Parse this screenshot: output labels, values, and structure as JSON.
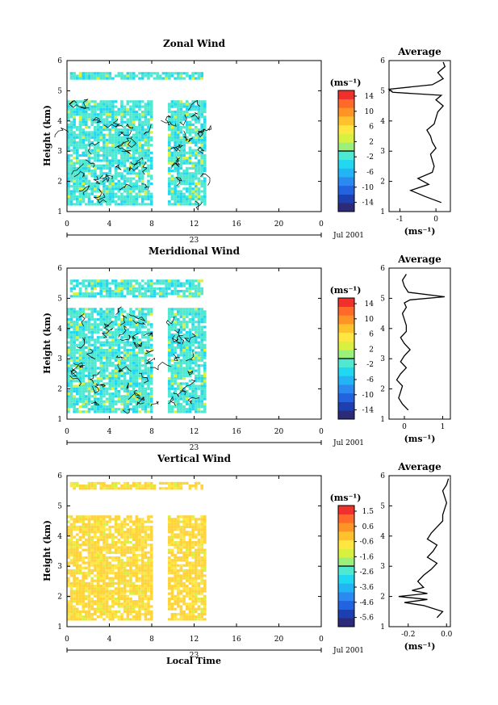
{
  "panels": [
    {
      "id": "zonal",
      "title": "Zonal Wind",
      "ylabel": "Height (km)",
      "xticks": [
        "0",
        "4",
        "8",
        "12",
        "16",
        "20",
        "0"
      ],
      "yticks": [
        "1",
        "2",
        "3",
        "4",
        "5",
        "6"
      ],
      "date_day": "23",
      "date_label": "Jul 2001",
      "unit_label": "(ms⁻¹)",
      "colorbar_ticks": [
        "14",
        "10",
        "6",
        "2",
        "-2",
        "-6",
        "-10",
        "-14"
      ],
      "colorbar_range": [
        -16,
        16
      ],
      "dominant_color": "#4fe8d0",
      "secondary_color": "#22d8f0",
      "avg_title": "Average",
      "avg_xticks": [
        "-1",
        "0"
      ],
      "avg_unit": "(ms⁻¹)"
    },
    {
      "id": "meridional",
      "title": "Meridional Wind",
      "ylabel": "Height (km)",
      "xticks": [
        "0",
        "4",
        "8",
        "12",
        "16",
        "20",
        "0"
      ],
      "yticks": [
        "1",
        "2",
        "3",
        "4",
        "5",
        "6"
      ],
      "date_day": "23",
      "date_label": "Jul 2001",
      "unit_label": "(ms⁻¹)",
      "colorbar_ticks": [
        "14",
        "10",
        "6",
        "2",
        "-2",
        "-6",
        "-10",
        "-14"
      ],
      "colorbar_range": [
        -16,
        16
      ],
      "dominant_color": "#4fe8d0",
      "secondary_color": "#22d8f0",
      "avg_title": "Average",
      "avg_xticks": [
        "0",
        "1"
      ],
      "avg_unit": "(ms⁻¹)"
    },
    {
      "id": "vertical",
      "title": "Vertical Wind",
      "ylabel": "Height (km)",
      "xticks": [
        "0",
        "4",
        "8",
        "12",
        "16",
        "20",
        "0"
      ],
      "yticks": [
        "1",
        "2",
        "3",
        "4",
        "5",
        "6"
      ],
      "date_day": "23",
      "date_label": "Jul 2001",
      "unit_label": "(ms⁻¹)",
      "colorbar_ticks": [
        "1.5",
        "0.6",
        "-0.6",
        "-1.6",
        "-2.6",
        "-3.6",
        "-4.6",
        "-5.6"
      ],
      "colorbar_range": [
        -6.1,
        2.0
      ],
      "dominant_color": "#ffd33a",
      "secondary_color": "#ffe640",
      "avg_title": "Average",
      "avg_xticks": [
        "-0.2",
        "0.0"
      ],
      "avg_unit": "(ms⁻¹)"
    }
  ],
  "xlabel": "Local Time",
  "colormap": [
    "#2b2b7a",
    "#1d3fb0",
    "#2463e0",
    "#2a8af0",
    "#22b4f5",
    "#22d8f0",
    "#4fe8d0",
    "#9af07a",
    "#d8f040",
    "#ffe640",
    "#ffc22c",
    "#ff9426",
    "#ff6a2a",
    "#f0302a"
  ],
  "chart_data": [
    {
      "type": "heatmap",
      "title": "Zonal Wind",
      "xlabel": "Local Time",
      "ylabel": "Height (km)",
      "xlim": [
        0,
        24
      ],
      "ylim": [
        1,
        6
      ],
      "colorbar_ticks": [
        14,
        10,
        6,
        2,
        -2,
        -6,
        -10,
        -14
      ],
      "data_coverage": [
        {
          "x": [
            0,
            8
          ],
          "y": [
            1.2,
            4.7
          ]
        },
        {
          "x": [
            9.5,
            13.2
          ],
          "y": [
            1.2,
            4.7
          ]
        },
        {
          "x": [
            0.2,
            13
          ],
          "y": [
            5.4,
            5.6
          ]
        }
      ],
      "typical_value_range": [
        -4,
        2
      ],
      "average_profile": {
        "xlim": [
          -1.3,
          0.4
        ],
        "xticks": [
          -1,
          0
        ],
        "height": [
          1.3,
          1.5,
          1.7,
          1.9,
          2.1,
          2.3,
          2.5,
          2.7,
          2.9,
          3.1,
          3.3,
          3.5,
          3.7,
          3.9,
          4.1,
          4.3,
          4.5,
          4.7,
          4.85,
          4.95,
          5.05,
          5.2,
          5.4,
          5.6,
          5.8,
          5.95
        ],
        "value": [
          0.15,
          -0.3,
          -0.7,
          -0.2,
          -0.5,
          -0.1,
          -0.05,
          -0.1,
          -0.15,
          0.0,
          -0.1,
          -0.15,
          -0.25,
          -0.05,
          0.0,
          0.05,
          0.2,
          0.0,
          0.15,
          -1.2,
          -1.3,
          -0.1,
          0.2,
          0.05,
          0.25,
          0.2
        ]
      }
    },
    {
      "type": "heatmap",
      "title": "Meridional Wind",
      "xlabel": "Local Time",
      "ylabel": "Height (km)",
      "xlim": [
        0,
        24
      ],
      "ylim": [
        1,
        6
      ],
      "colorbar_ticks": [
        14,
        10,
        6,
        2,
        -2,
        -6,
        -10,
        -14
      ],
      "data_coverage": [
        {
          "x": [
            0,
            8
          ],
          "y": [
            1.2,
            4.7
          ]
        },
        {
          "x": [
            9.5,
            13.2
          ],
          "y": [
            1.2,
            4.7
          ]
        },
        {
          "x": [
            0.2,
            13
          ],
          "y": [
            5.0,
            5.6
          ]
        }
      ],
      "typical_value_range": [
        -4,
        2
      ],
      "average_profile": {
        "xlim": [
          -0.4,
          1.2
        ],
        "xticks": [
          0,
          1
        ],
        "height": [
          1.3,
          1.5,
          1.7,
          1.9,
          2.1,
          2.3,
          2.5,
          2.7,
          2.9,
          3.1,
          3.3,
          3.5,
          3.7,
          3.9,
          4.1,
          4.3,
          4.5,
          4.7,
          4.85,
          4.95,
          5.05,
          5.2,
          5.4,
          5.6,
          5.8
        ],
        "value": [
          0.1,
          -0.05,
          -0.15,
          -0.1,
          -0.05,
          -0.2,
          -0.1,
          0.05,
          -0.1,
          0.0,
          0.15,
          0.0,
          -0.1,
          0.05,
          0.05,
          0.0,
          -0.05,
          0.05,
          0.0,
          0.15,
          1.05,
          0.1,
          0.0,
          -0.05,
          0.05
        ]
      }
    },
    {
      "type": "heatmap",
      "title": "Vertical Wind",
      "xlabel": "Local Time",
      "ylabel": "Height (km)",
      "xlim": [
        0,
        24
      ],
      "ylim": [
        1,
        6
      ],
      "colorbar_ticks": [
        1.5,
        0.6,
        -0.6,
        -1.6,
        -2.6,
        -3.6,
        -4.6,
        -5.6
      ],
      "data_coverage": [
        {
          "x": [
            0,
            8
          ],
          "y": [
            1.2,
            4.7
          ]
        },
        {
          "x": [
            9.5,
            13.2
          ],
          "y": [
            1.2,
            4.7
          ]
        },
        {
          "x": [
            0.2,
            13
          ],
          "y": [
            5.5,
            5.8
          ]
        }
      ],
      "typical_value_range": [
        -0.6,
        0.6
      ],
      "average_profile": {
        "xlim": [
          -0.3,
          0.02
        ],
        "xticks": [
          -0.2,
          0.0
        ],
        "height": [
          1.3,
          1.5,
          1.7,
          1.8,
          1.9,
          2.0,
          2.1,
          2.2,
          2.3,
          2.5,
          2.7,
          2.9,
          3.1,
          3.3,
          3.5,
          3.7,
          3.9,
          4.1,
          4.3,
          4.5,
          4.7,
          4.9,
          5.1,
          5.3,
          5.5,
          5.7,
          5.9
        ],
        "value": [
          -0.05,
          -0.02,
          -0.12,
          -0.22,
          -0.1,
          -0.25,
          -0.1,
          -0.18,
          -0.12,
          -0.15,
          -0.12,
          -0.08,
          -0.05,
          -0.1,
          -0.07,
          -0.05,
          -0.1,
          -0.08,
          -0.05,
          -0.02,
          -0.02,
          -0.01,
          0.0,
          -0.01,
          -0.02,
          0.0,
          0.01
        ]
      }
    }
  ]
}
